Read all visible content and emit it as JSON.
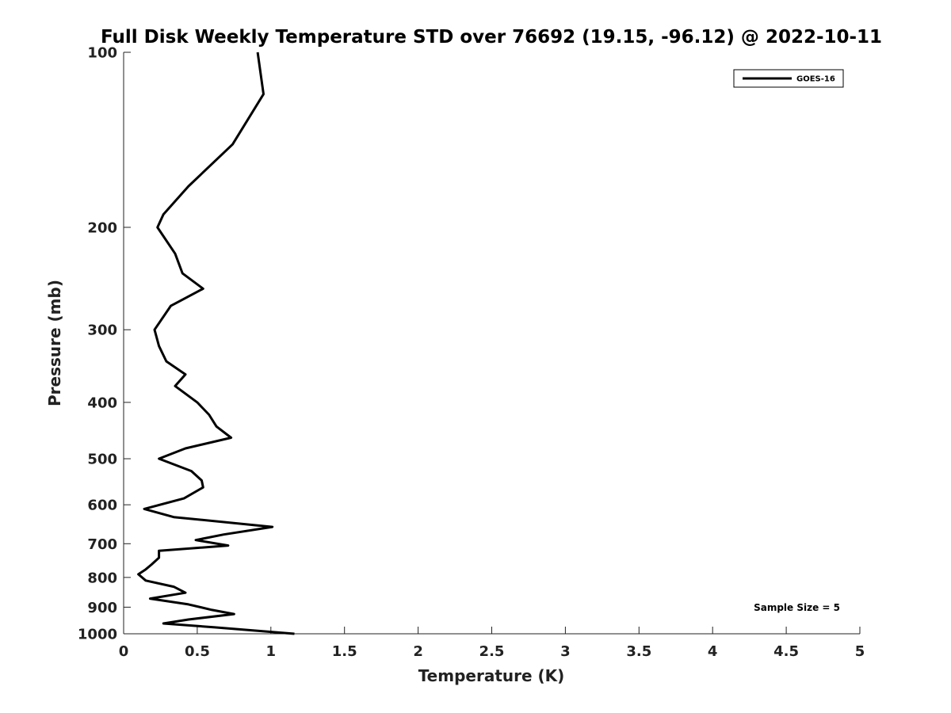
{
  "chart_data": {
    "type": "line",
    "title": "Full Disk Weekly Temperature STD over 76692 (19.15, -96.12) @ 2022-10-11",
    "xlabel": "Temperature (K)",
    "ylabel": "Pressure (mb)",
    "xlim": [
      0,
      5
    ],
    "ylim": [
      1000,
      100
    ],
    "y_scale": "log",
    "x_ticks": [
      "0",
      "0.5",
      "1",
      "1.5",
      "2",
      "2.5",
      "3",
      "3.5",
      "4",
      "4.5",
      "5"
    ],
    "y_ticks": [
      "100",
      "200",
      "300",
      "400",
      "500",
      "600",
      "700",
      "800",
      "900",
      "1000"
    ],
    "grid": false,
    "legend_position": "top-right",
    "annotation": "Sample Size = 5",
    "series": [
      {
        "name": "GOES-16",
        "color": "#000000",
        "points": [
          [
            0.91,
            100
          ],
          [
            0.95,
            118
          ],
          [
            0.74,
            144
          ],
          [
            0.44,
            170
          ],
          [
            0.27,
            190
          ],
          [
            0.23,
            200
          ],
          [
            0.35,
            222
          ],
          [
            0.4,
            240
          ],
          [
            0.54,
            255
          ],
          [
            0.32,
            273
          ],
          [
            0.21,
            300
          ],
          [
            0.24,
            320
          ],
          [
            0.29,
            340
          ],
          [
            0.42,
            358
          ],
          [
            0.35,
            375
          ],
          [
            0.5,
            400
          ],
          [
            0.58,
            420
          ],
          [
            0.63,
            440
          ],
          [
            0.73,
            460
          ],
          [
            0.42,
            480
          ],
          [
            0.24,
            500
          ],
          [
            0.46,
            525
          ],
          [
            0.53,
            545
          ],
          [
            0.54,
            560
          ],
          [
            0.41,
            585
          ],
          [
            0.14,
            610
          ],
          [
            0.34,
            630
          ],
          [
            1.01,
            655
          ],
          [
            0.68,
            675
          ],
          [
            0.49,
            690
          ],
          [
            0.71,
            705
          ],
          [
            0.24,
            720
          ],
          [
            0.24,
            740
          ],
          [
            0.19,
            760
          ],
          [
            0.15,
            775
          ],
          [
            0.1,
            790
          ],
          [
            0.15,
            810
          ],
          [
            0.34,
            830
          ],
          [
            0.42,
            850
          ],
          [
            0.18,
            870
          ],
          [
            0.44,
            890
          ],
          [
            0.6,
            910
          ],
          [
            0.75,
            925
          ],
          [
            0.44,
            945
          ],
          [
            0.27,
            960
          ],
          [
            0.62,
            975
          ],
          [
            1.16,
            1000
          ]
        ]
      }
    ]
  }
}
